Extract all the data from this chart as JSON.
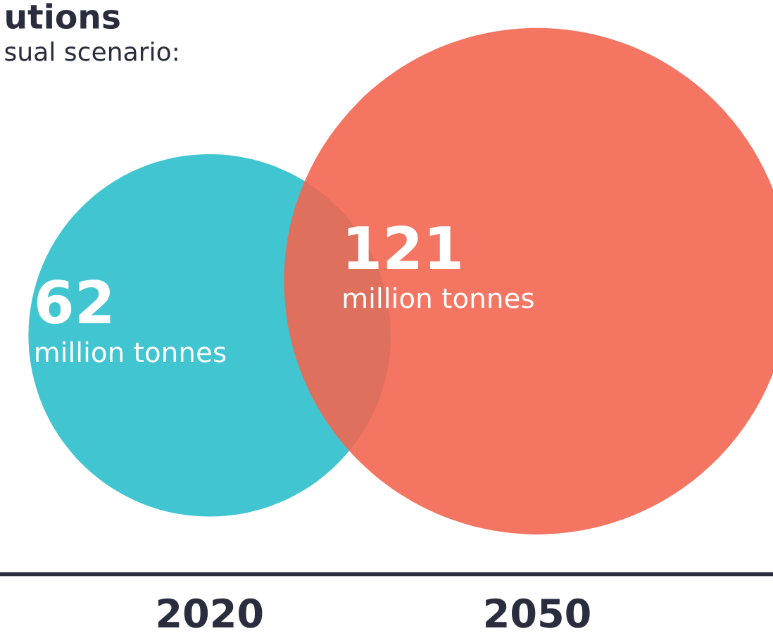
{
  "chart_data": {
    "type": "other",
    "title": "utions",
    "subtitle": "sual scenario:",
    "categories": [
      "2020",
      "2050"
    ],
    "values": [
      62,
      121
    ],
    "colors": [
      "#2bbfcc",
      "#f26651"
    ],
    "data_labels": true,
    "annotations": [
      "million tonnes",
      "million tonnes"
    ]
  }
}
